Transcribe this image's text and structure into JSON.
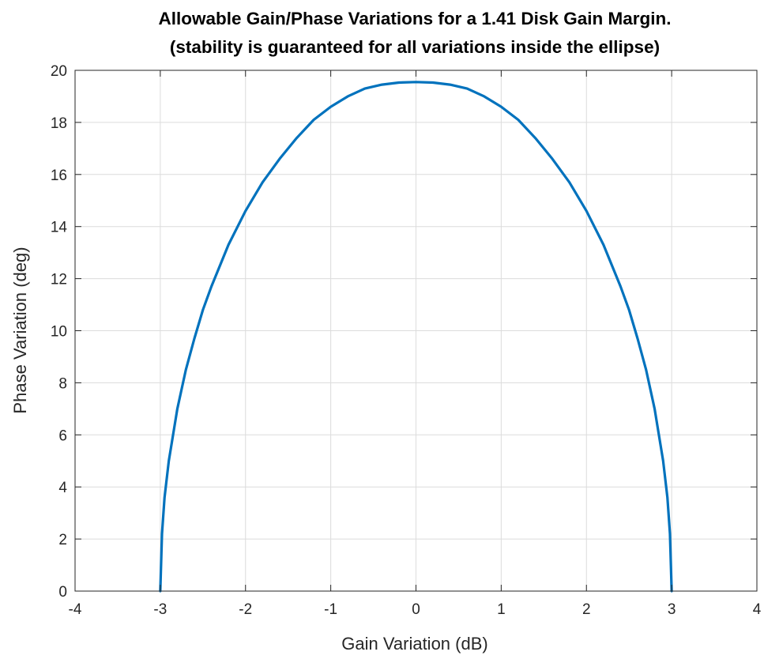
{
  "chart_data": {
    "type": "line",
    "title": "Allowable Gain/Phase Variations for a 1.41 Disk Gain Margin.",
    "subtitle": "(stability is guaranteed for all variations inside the ellipse)",
    "xlabel": "Gain Variation (dB)",
    "ylabel": "Phase Variation (deg)",
    "xlim": [
      -4,
      4
    ],
    "ylim": [
      0,
      20
    ],
    "xticks": [
      -4,
      -3,
      -2,
      -1,
      0,
      1,
      2,
      3,
      4
    ],
    "yticks": [
      0,
      2,
      4,
      6,
      8,
      10,
      12,
      14,
      16,
      18,
      20
    ],
    "grid": true,
    "legend": "none",
    "colors": {
      "line": "#0072BD",
      "grid": "#dcdcdc",
      "axes": "#262626",
      "background": "#ffffff"
    },
    "series": [
      {
        "x": [
          -3.0,
          -2.98,
          -2.95,
          -2.9,
          -2.8,
          -2.7,
          -2.6,
          -2.5,
          -2.4,
          -2.2,
          -2.0,
          -1.8,
          -1.6,
          -1.4,
          -1.2,
          -1.0,
          -0.8,
          -0.6,
          -0.4,
          -0.2,
          0.0,
          0.2,
          0.4,
          0.6,
          0.8,
          1.0,
          1.2,
          1.4,
          1.6,
          1.8,
          2.0,
          2.2,
          2.4,
          2.5,
          2.6,
          2.7,
          2.8,
          2.9,
          2.95,
          2.98,
          3.0
        ],
        "y": [
          0.0,
          2.2,
          3.6,
          5.0,
          7.0,
          8.5,
          9.7,
          10.8,
          11.7,
          13.3,
          14.6,
          15.7,
          16.6,
          17.4,
          18.1,
          18.6,
          19.0,
          19.3,
          19.45,
          19.53,
          19.55,
          19.53,
          19.45,
          19.3,
          19.0,
          18.6,
          18.1,
          17.4,
          16.6,
          15.7,
          14.6,
          13.3,
          11.7,
          10.8,
          9.7,
          8.5,
          7.0,
          5.0,
          3.6,
          2.2,
          0.0
        ]
      }
    ]
  }
}
